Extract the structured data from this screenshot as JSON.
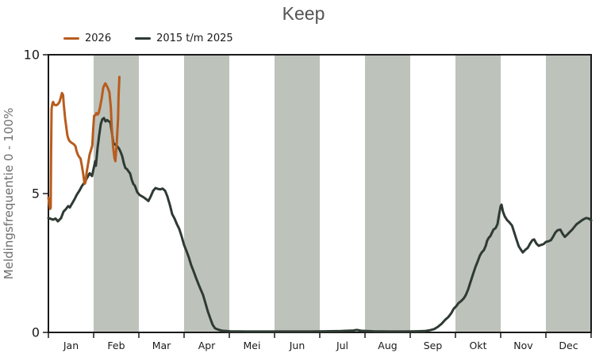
{
  "title": "Keep",
  "legend": {
    "items": [
      {
        "label": "2026",
        "color": "#b85c1e"
      },
      {
        "label": "2015 t/m 2025",
        "color": "#2e3a33"
      }
    ]
  },
  "y_axis": {
    "label": "Meldingsfrequentie 0 - 100%",
    "ticks": [
      0,
      5,
      10
    ],
    "range": [
      0,
      10
    ]
  },
  "x_axis": {
    "months": [
      "Jan",
      "Feb",
      "Mar",
      "Apr",
      "Mei",
      "Jun",
      "Jul",
      "Aug",
      "Sep",
      "Okt",
      "Nov",
      "Dec"
    ]
  },
  "colors": {
    "band": "#bdc2bb",
    "axis": "#1a1a1a",
    "title": "#545454",
    "y_label": "#6e6e6e",
    "series_2026": "#b85c1e",
    "series_hist": "#2e3a33"
  },
  "chart_data": {
    "type": "line",
    "title": "Keep",
    "ylabel": "Meldingsfrequentie 0 - 100%",
    "ylim": [
      0,
      10
    ],
    "x_unit": "months Jan-Dec mapped to 0-12",
    "x_tick_labels": [
      "Jan",
      "Feb",
      "Mar",
      "Apr",
      "Mei",
      "Jun",
      "Jul",
      "Aug",
      "Sep",
      "Okt",
      "Nov",
      "Dec"
    ],
    "shaded_months": [
      "Feb",
      "Apr",
      "Jun",
      "Aug",
      "Okt",
      "Dec"
    ],
    "legend_position": "top-left",
    "grid": false,
    "series": [
      {
        "name": "2015 t/m 2025",
        "color": "#2e3a33",
        "points": [
          [
            0.0,
            4.12
          ],
          [
            0.105,
            4.06
          ],
          [
            0.158,
            4.1
          ],
          [
            0.21,
            4.0
          ],
          [
            0.28,
            4.12
          ],
          [
            0.333,
            4.35
          ],
          [
            0.386,
            4.44
          ],
          [
            0.439,
            4.55
          ],
          [
            0.474,
            4.5
          ],
          [
            0.526,
            4.65
          ],
          [
            0.579,
            4.8
          ],
          [
            0.632,
            4.97
          ],
          [
            0.684,
            5.1
          ],
          [
            0.737,
            5.26
          ],
          [
            0.807,
            5.42
          ],
          [
            0.86,
            5.58
          ],
          [
            0.912,
            5.73
          ],
          [
            0.965,
            5.63
          ],
          [
            1.0,
            5.9
          ],
          [
            1.035,
            6.16
          ],
          [
            1.05,
            6.0
          ],
          [
            1.088,
            6.65
          ],
          [
            1.123,
            7.1
          ],
          [
            1.158,
            7.5
          ],
          [
            1.193,
            7.68
          ],
          [
            1.228,
            7.72
          ],
          [
            1.263,
            7.6
          ],
          [
            1.298,
            7.65
          ],
          [
            1.333,
            7.6
          ],
          [
            1.368,
            7.58
          ],
          [
            1.404,
            7.2
          ],
          [
            1.439,
            6.8
          ],
          [
            1.474,
            6.77
          ],
          [
            1.509,
            6.73
          ],
          [
            1.561,
            6.62
          ],
          [
            1.596,
            6.5
          ],
          [
            1.632,
            6.35
          ],
          [
            1.667,
            6.1
          ],
          [
            1.702,
            5.92
          ],
          [
            1.737,
            5.88
          ],
          [
            1.772,
            5.8
          ],
          [
            1.807,
            5.72
          ],
          [
            1.842,
            5.5
          ],
          [
            1.877,
            5.35
          ],
          [
            1.912,
            5.28
          ],
          [
            1.965,
            5.05
          ],
          [
            2.018,
            4.95
          ],
          [
            2.07,
            4.9
          ],
          [
            2.12,
            4.85
          ],
          [
            2.175,
            4.78
          ],
          [
            2.21,
            4.73
          ],
          [
            2.263,
            4.9
          ],
          [
            2.316,
            5.1
          ],
          [
            2.368,
            5.2
          ],
          [
            2.42,
            5.17
          ],
          [
            2.474,
            5.15
          ],
          [
            2.526,
            5.18
          ],
          [
            2.58,
            5.1
          ],
          [
            2.63,
            4.9
          ],
          [
            2.684,
            4.6
          ],
          [
            2.737,
            4.26
          ],
          [
            2.79,
            4.1
          ],
          [
            2.84,
            3.9
          ],
          [
            2.895,
            3.72
          ],
          [
            2.947,
            3.45
          ],
          [
            3.0,
            3.15
          ],
          [
            3.05,
            2.95
          ],
          [
            3.105,
            2.7
          ],
          [
            3.158,
            2.42
          ],
          [
            3.21,
            2.2
          ],
          [
            3.263,
            1.97
          ],
          [
            3.316,
            1.75
          ],
          [
            3.368,
            1.54
          ],
          [
            3.42,
            1.35
          ],
          [
            3.474,
            1.05
          ],
          [
            3.526,
            0.75
          ],
          [
            3.58,
            0.5
          ],
          [
            3.63,
            0.28
          ],
          [
            3.684,
            0.15
          ],
          [
            3.754,
            0.1
          ],
          [
            3.84,
            0.06
          ],
          [
            4.018,
            0.04
          ],
          [
            4.368,
            0.03
          ],
          [
            4.72,
            0.03
          ],
          [
            5.07,
            0.03
          ],
          [
            5.42,
            0.03
          ],
          [
            5.77,
            0.03
          ],
          [
            6.12,
            0.04
          ],
          [
            6.47,
            0.05
          ],
          [
            6.74,
            0.07
          ],
          [
            6.82,
            0.09
          ],
          [
            6.91,
            0.06
          ],
          [
            7.18,
            0.04
          ],
          [
            7.53,
            0.03
          ],
          [
            7.88,
            0.03
          ],
          [
            8.14,
            0.04
          ],
          [
            8.32,
            0.05
          ],
          [
            8.44,
            0.08
          ],
          [
            8.53,
            0.12
          ],
          [
            8.61,
            0.2
          ],
          [
            8.7,
            0.32
          ],
          [
            8.77,
            0.45
          ],
          [
            8.84,
            0.55
          ],
          [
            8.91,
            0.7
          ],
          [
            8.96,
            0.85
          ],
          [
            9.02,
            0.95
          ],
          [
            9.07,
            1.06
          ],
          [
            9.12,
            1.12
          ],
          [
            9.18,
            1.22
          ],
          [
            9.23,
            1.35
          ],
          [
            9.28,
            1.55
          ],
          [
            9.33,
            1.8
          ],
          [
            9.39,
            2.1
          ],
          [
            9.44,
            2.35
          ],
          [
            9.49,
            2.55
          ],
          [
            9.54,
            2.77
          ],
          [
            9.58,
            2.88
          ],
          [
            9.63,
            2.97
          ],
          [
            9.67,
            3.12
          ],
          [
            9.7,
            3.3
          ],
          [
            9.74,
            3.42
          ],
          [
            9.77,
            3.46
          ],
          [
            9.81,
            3.6
          ],
          [
            9.84,
            3.7
          ],
          [
            9.89,
            3.76
          ],
          [
            9.93,
            3.9
          ],
          [
            9.96,
            4.2
          ],
          [
            10.0,
            4.55
          ],
          [
            10.02,
            4.6
          ],
          [
            10.05,
            4.35
          ],
          [
            10.09,
            4.18
          ],
          [
            10.14,
            4.05
          ],
          [
            10.19,
            3.97
          ],
          [
            10.25,
            3.85
          ],
          [
            10.3,
            3.6
          ],
          [
            10.35,
            3.35
          ],
          [
            10.4,
            3.1
          ],
          [
            10.46,
            2.95
          ],
          [
            10.49,
            2.88
          ],
          [
            10.54,
            2.97
          ],
          [
            10.6,
            3.05
          ],
          [
            10.65,
            3.2
          ],
          [
            10.7,
            3.32
          ],
          [
            10.74,
            3.35
          ],
          [
            10.79,
            3.2
          ],
          [
            10.84,
            3.12
          ],
          [
            10.89,
            3.15
          ],
          [
            10.95,
            3.18
          ],
          [
            11.0,
            3.26
          ],
          [
            11.05,
            3.28
          ],
          [
            11.11,
            3.32
          ],
          [
            11.16,
            3.45
          ],
          [
            11.21,
            3.6
          ],
          [
            11.26,
            3.68
          ],
          [
            11.32,
            3.7
          ],
          [
            11.37,
            3.55
          ],
          [
            11.42,
            3.44
          ],
          [
            11.47,
            3.52
          ],
          [
            11.53,
            3.62
          ],
          [
            11.58,
            3.7
          ],
          [
            11.63,
            3.8
          ],
          [
            11.68,
            3.9
          ],
          [
            11.74,
            3.97
          ],
          [
            11.79,
            4.03
          ],
          [
            11.84,
            4.08
          ],
          [
            11.89,
            4.12
          ],
          [
            11.95,
            4.1
          ],
          [
            12.0,
            4.03
          ]
        ]
      },
      {
        "name": "2026",
        "color": "#b85c1e",
        "points": [
          [
            0.0,
            4.85
          ],
          [
            0.02,
            4.6
          ],
          [
            0.04,
            4.45
          ],
          [
            0.05,
            4.5
          ],
          [
            0.06,
            6.5
          ],
          [
            0.07,
            8.05
          ],
          [
            0.09,
            8.25
          ],
          [
            0.105,
            8.3
          ],
          [
            0.13,
            8.2
          ],
          [
            0.175,
            8.18
          ],
          [
            0.21,
            8.22
          ],
          [
            0.246,
            8.3
          ],
          [
            0.28,
            8.5
          ],
          [
            0.3,
            8.62
          ],
          [
            0.325,
            8.55
          ],
          [
            0.34,
            8.2
          ],
          [
            0.37,
            7.7
          ],
          [
            0.395,
            7.4
          ],
          [
            0.42,
            7.1
          ],
          [
            0.447,
            6.95
          ],
          [
            0.474,
            6.88
          ],
          [
            0.51,
            6.83
          ],
          [
            0.56,
            6.78
          ],
          [
            0.6,
            6.7
          ],
          [
            0.62,
            6.55
          ],
          [
            0.65,
            6.4
          ],
          [
            0.68,
            6.32
          ],
          [
            0.71,
            6.26
          ],
          [
            0.74,
            6.0
          ],
          [
            0.77,
            5.7
          ],
          [
            0.8,
            5.35
          ],
          [
            0.82,
            5.4
          ],
          [
            0.85,
            5.8
          ],
          [
            0.88,
            6.1
          ],
          [
            0.91,
            6.4
          ],
          [
            0.95,
            6.62
          ],
          [
            0.97,
            6.73
          ],
          [
            0.99,
            7.3
          ],
          [
            1.01,
            7.8
          ],
          [
            1.04,
            7.82
          ],
          [
            1.06,
            7.9
          ],
          [
            1.09,
            7.85
          ],
          [
            1.11,
            7.9
          ],
          [
            1.14,
            8.1
          ],
          [
            1.18,
            8.45
          ],
          [
            1.21,
            8.8
          ],
          [
            1.24,
            8.92
          ],
          [
            1.26,
            8.97
          ],
          [
            1.3,
            8.85
          ],
          [
            1.32,
            8.78
          ],
          [
            1.35,
            8.65
          ],
          [
            1.38,
            8.1
          ],
          [
            1.4,
            7.4
          ],
          [
            1.43,
            6.7
          ],
          [
            1.46,
            6.3
          ],
          [
            1.48,
            6.17
          ],
          [
            1.51,
            6.8
          ],
          [
            1.54,
            7.7
          ],
          [
            1.55,
            8.5
          ],
          [
            1.57,
            9.2
          ]
        ]
      }
    ]
  }
}
